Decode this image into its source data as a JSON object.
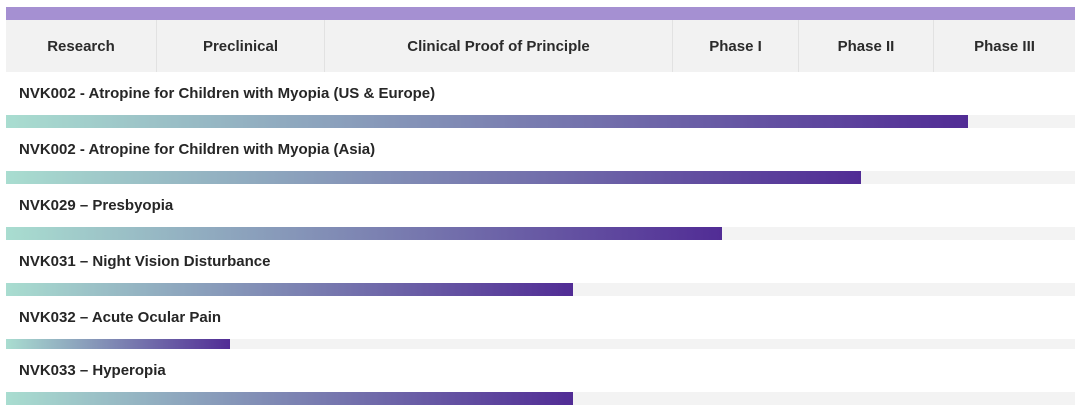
{
  "chart_data": {
    "type": "bar",
    "orientation": "horizontal",
    "stages": [
      "Research",
      "Preclinical",
      "Clinical Proof of Principle",
      "Phase I",
      "Phase II",
      "Phase III"
    ],
    "categories": [
      "NVK002 - Atropine for Children with Myopia (US & Europe)",
      "NVK002 - Atropine for Children with Myopia (Asia)",
      "NVK029 – Presbyopia",
      "NVK031 – Night Vision Disturbance",
      "NVK032 – Acute Ocular Pain",
      "NVK033 – Hyperopia"
    ],
    "values": [
      0.9,
      0.8,
      0.67,
      0.53,
      0.21,
      0.53
    ],
    "value_unit": "fraction of pipeline completed",
    "colors": {
      "top_bar": "#a590d2",
      "bar_start": "#a9ddd0",
      "bar_end": "#512c95",
      "header_bg": "#f2f2f2",
      "track_bg": "#f3f3f3"
    }
  }
}
